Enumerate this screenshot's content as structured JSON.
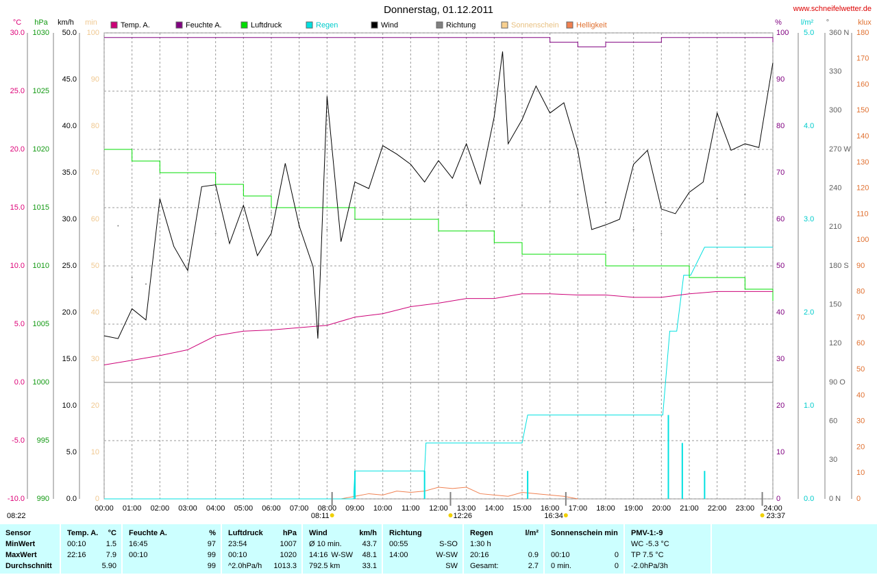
{
  "chart_data": {
    "type": "line",
    "title": "Donnerstag, 01.12.2011",
    "source": "www.schneifelwetter.de",
    "moon_label": "08:22",
    "grid": true,
    "xlim": [
      0,
      24
    ],
    "xticks": [
      {
        "value": 0,
        "label": "00:00"
      },
      {
        "value": 1,
        "label": "01:00"
      },
      {
        "value": 2,
        "label": "02:00"
      },
      {
        "value": 3,
        "label": "03:00"
      },
      {
        "value": 4,
        "label": "04:00"
      },
      {
        "value": 5,
        "label": "05:00"
      },
      {
        "value": 6,
        "label": "06:00"
      },
      {
        "value": 7,
        "label": "07:00"
      },
      {
        "value": 8,
        "label": "08:00"
      },
      {
        "value": 9,
        "label": "09:00"
      },
      {
        "value": 10,
        "label": "10:00"
      },
      {
        "value": 11,
        "label": "11:00"
      },
      {
        "value": 12,
        "label": "12:00"
      },
      {
        "value": 13,
        "label": "13:00"
      },
      {
        "value": 14,
        "label": "14:00"
      },
      {
        "value": 15,
        "label": "15:00"
      },
      {
        "value": 16,
        "label": "16:00"
      },
      {
        "value": 17,
        "label": "17:00"
      },
      {
        "value": 18,
        "label": "18:00"
      },
      {
        "value": 19,
        "label": "19:00"
      },
      {
        "value": 20,
        "label": "20:00"
      },
      {
        "value": 21,
        "label": "21:00"
      },
      {
        "value": 22,
        "label": "22:00"
      },
      {
        "value": 23,
        "label": "23:00"
      },
      {
        "value": 24,
        "label": "24:00"
      }
    ],
    "y_axes": [
      {
        "unit": "°C",
        "color": "#dd0077",
        "ylim": [
          -10,
          30
        ],
        "yticks": [
          {
            "value": -10,
            "label": "-10.0"
          },
          {
            "value": -5,
            "label": "-5.0"
          },
          {
            "value": 0,
            "label": "0.0"
          },
          {
            "value": 5,
            "label": "5.0"
          },
          {
            "value": 10,
            "label": "10.0"
          },
          {
            "value": 15,
            "label": "15.0"
          },
          {
            "value": 20,
            "label": "20.0"
          },
          {
            "value": 25,
            "label": "25.0"
          },
          {
            "value": 30,
            "label": "30.0"
          }
        ]
      },
      {
        "unit": "hPa",
        "color": "#119911",
        "ylim": [
          990,
          1030
        ],
        "yticks": [
          990,
          995,
          1000,
          1005,
          1010,
          1015,
          1020,
          1025,
          1030
        ]
      },
      {
        "unit": "km/h",
        "color": "#000000",
        "ylim": [
          0,
          50
        ],
        "yticks": [
          {
            "value": 0,
            "label": "0.0"
          },
          {
            "value": 5,
            "label": "5.0"
          },
          {
            "value": 10,
            "label": "10.0"
          },
          {
            "value": 15,
            "label": "15.0"
          },
          {
            "value": 20,
            "label": "20.0"
          },
          {
            "value": 25,
            "label": "25.0"
          },
          {
            "value": 30,
            "label": "30.0"
          },
          {
            "value": 35,
            "label": "35.0"
          },
          {
            "value": 40,
            "label": "40.0"
          },
          {
            "value": 45,
            "label": "45.0"
          },
          {
            "value": 50,
            "label": "50.0"
          }
        ]
      },
      {
        "unit": "min",
        "color": "#f0c890",
        "ylim": [
          0,
          100
        ],
        "yticks": [
          0,
          10,
          20,
          30,
          40,
          50,
          60,
          70,
          80,
          90,
          100
        ]
      },
      {
        "unit": "%",
        "color": "#800080",
        "ylim": [
          0,
          100
        ],
        "yticks": [
          0,
          10,
          20,
          30,
          40,
          50,
          60,
          70,
          80,
          90,
          100
        ]
      },
      {
        "unit": "l/m²",
        "color": "#00cccc",
        "ylim": [
          0,
          5
        ],
        "yticks": [
          {
            "value": 0,
            "label": "0.0"
          },
          {
            "value": 1,
            "label": "1.0"
          },
          {
            "value": 2,
            "label": "2.0"
          },
          {
            "value": 3,
            "label": "3.0"
          },
          {
            "value": 4,
            "label": "4.0"
          },
          {
            "value": 5,
            "label": "5.0"
          }
        ]
      },
      {
        "unit": "°",
        "color": "#606060",
        "ylim": [
          0,
          360
        ],
        "yticks": [
          {
            "value": 0,
            "label": "0 N"
          },
          30,
          60,
          {
            "value": 90,
            "label": "90 O"
          },
          120,
          150,
          {
            "value": 180,
            "label": "180 S"
          },
          210,
          240,
          {
            "value": 270,
            "label": "270 W"
          },
          300,
          330,
          {
            "value": 360,
            "label": "360 N"
          }
        ]
      },
      {
        "unit": "klux",
        "color": "#e07030",
        "ylim": [
          0,
          180
        ],
        "yticks": [
          0,
          10,
          20,
          30,
          40,
          50,
          60,
          70,
          80,
          90,
          100,
          110,
          120,
          130,
          140,
          150,
          160,
          170,
          180
        ]
      }
    ],
    "series": [
      {
        "name": "Temp. A.",
        "color": "#cc0077",
        "axis": 0,
        "style": "line",
        "x": [
          0,
          1,
          2,
          3,
          4,
          5,
          6,
          7,
          8,
          9,
          10,
          11,
          12,
          13,
          14,
          15,
          16,
          17,
          18,
          19,
          20,
          21,
          22,
          23,
          24
        ],
        "values": [
          1.5,
          1.9,
          2.3,
          2.8,
          4.0,
          4.4,
          4.5,
          4.7,
          4.9,
          5.6,
          5.9,
          6.5,
          6.8,
          7.2,
          7.2,
          7.6,
          7.6,
          7.5,
          7.5,
          7.3,
          7.3,
          7.6,
          7.8,
          7.8,
          7.8
        ]
      },
      {
        "name": "Feuchte A.",
        "color": "#800080",
        "axis": 4,
        "style": "step",
        "x": [
          0,
          1,
          2,
          3,
          4,
          5,
          6,
          7,
          8,
          9,
          10,
          11,
          12,
          13,
          14,
          15,
          16,
          17,
          18,
          19,
          20,
          21,
          22,
          23,
          24
        ],
        "values": [
          99,
          99,
          99,
          99,
          99,
          99,
          99,
          99,
          99,
          99,
          99,
          99,
          99,
          99,
          99,
          99,
          98,
          97,
          98,
          98,
          99,
          99,
          99,
          99,
          98
        ]
      },
      {
        "name": "Luftdruck",
        "color": "#00dd00",
        "axis": 1,
        "style": "step",
        "x": [
          0,
          1,
          2,
          3,
          4,
          5,
          6,
          7,
          8,
          9,
          10,
          11,
          12,
          13,
          14,
          15,
          16,
          17,
          18,
          19,
          20,
          21,
          22,
          23,
          24
        ],
        "values": [
          1020,
          1019,
          1018,
          1018,
          1017,
          1016,
          1015,
          1015,
          1015,
          1014,
          1014,
          1014,
          1013,
          1013,
          1012,
          1011,
          1011,
          1011,
          1010,
          1010,
          1010,
          1009,
          1009,
          1008,
          1007
        ]
      },
      {
        "name": "Regen",
        "color": "#00e0e0",
        "axis": 5,
        "style": "line",
        "x": [
          0,
          8.95,
          9.0,
          11.5,
          11.55,
          15.0,
          15.2,
          20.05,
          20.3,
          20.55,
          20.8,
          21.05,
          21.55,
          24
        ],
        "values": [
          0,
          0,
          0.3,
          0.3,
          0.6,
          0.6,
          0.9,
          0.9,
          1.8,
          1.8,
          2.4,
          2.4,
          2.7,
          2.7
        ],
        "bars_x": [
          9.0,
          11.5,
          15.2,
          20.25,
          20.75,
          21.55
        ],
        "bars_values": [
          0.3,
          0.3,
          0.3,
          0.9,
          0.6,
          0.3
        ]
      },
      {
        "name": "Wind",
        "color": "#000000",
        "axis": 2,
        "style": "line",
        "x": [
          0,
          0.5,
          1,
          1.5,
          2,
          2.5,
          3,
          3.5,
          4,
          4.5,
          5,
          5.5,
          6,
          6.5,
          7,
          7.5,
          7.67,
          8,
          8.5,
          9,
          9.5,
          10,
          10.5,
          11,
          11.5,
          12,
          12.5,
          13,
          13.5,
          14,
          14.3,
          14.5,
          15,
          15.5,
          16,
          16.5,
          17,
          17.5,
          18,
          18.5,
          19,
          19.5,
          20,
          20.5,
          21,
          21.5,
          22,
          22.5,
          23,
          23.5,
          24
        ],
        "values": [
          17.5,
          17.2,
          20.4,
          19.2,
          32.2,
          27.1,
          24.5,
          33.5,
          33.7,
          27.4,
          31.5,
          26.1,
          28.5,
          36.0,
          29.3,
          24.9,
          17.2,
          43.2,
          27.6,
          34.0,
          33.3,
          37.9,
          37.0,
          35.9,
          34.0,
          36.3,
          34.4,
          38.1,
          33.8,
          41.0,
          48.0,
          38.1,
          40.7,
          44.3,
          41.4,
          42.5,
          37.4,
          28.9,
          29.4,
          30.0,
          35.9,
          37.4,
          31.1,
          30.6,
          32.9,
          34.0,
          41.4,
          37.4,
          38.1,
          37.7,
          46.8
        ]
      },
      {
        "name": "Richtung",
        "color": "#808080",
        "axis": 6,
        "style": "dots",
        "x": [
          0.5,
          1,
          1.5,
          2,
          3,
          4,
          5,
          6,
          7,
          8,
          9,
          10,
          11,
          12,
          13,
          14,
          15,
          16,
          17,
          18,
          19,
          20,
          21,
          22,
          23
        ],
        "values": [
          211,
          171,
          166,
          184,
          200,
          205,
          208,
          221,
          211,
          208,
          216,
          221,
          224,
          221,
          227,
          232,
          227,
          230,
          235,
          229,
          208,
          205,
          232,
          232,
          235
        ]
      },
      {
        "name": "Sonnenschein",
        "color": "#f8d090",
        "axis": 3,
        "style": "line",
        "x": [],
        "values": []
      },
      {
        "name": "Helligkeit",
        "color": "#f08050",
        "axis": 7,
        "style": "line",
        "x": [
          8.5,
          9,
          9.5,
          10,
          10.5,
          11,
          11.5,
          12,
          12.5,
          13,
          13.5,
          14,
          14.5,
          15,
          15.5,
          16,
          16.5,
          17
        ],
        "values": [
          0,
          1,
          2,
          1.5,
          3,
          2.5,
          3,
          4.5,
          4,
          4.5,
          2,
          1.5,
          1,
          2.5,
          2,
          1.5,
          1,
          0
        ]
      }
    ],
    "annotations": [
      {
        "x": 8.18,
        "label": "08:11"
      },
      {
        "x": 12.43,
        "label": "12:26"
      },
      {
        "x": 16.57,
        "label": "16:34"
      },
      {
        "x": 23.62,
        "label": "23:37"
      }
    ]
  },
  "table": {
    "columns": [
      {
        "l": "Sensor"
      },
      {
        "l": "Temp. A.",
        "r": "°C"
      },
      {
        "l": "Feuchte A.",
        "r": "%"
      },
      {
        "l": "Luftdruck",
        "r": "hPa"
      },
      {
        "l": "Wind",
        "r": "km/h"
      },
      {
        "l": "Richtung"
      },
      {
        "l": "Regen",
        "r": "l/m²"
      },
      {
        "l": "Sonnenschein min"
      },
      {
        "l": "PMV-1:-9"
      }
    ],
    "rows": [
      [
        {
          "l": "MinWert"
        },
        {
          "l": "00:10",
          "r": "1.5"
        },
        {
          "l": "16:45",
          "r": "97"
        },
        {
          "l": "23:54",
          "r": "1007"
        },
        {
          "l": "Ø 10 min.",
          "r": "43.7"
        },
        {
          "l": "00:55",
          "r": "S-SO"
        },
        {
          "l": "1:30 h"
        },
        {},
        {
          "l": "WC -5.3 °C"
        }
      ],
      [
        {
          "l": "MaxWert"
        },
        {
          "l": "22:16",
          "r": "7.9"
        },
        {
          "l": "00:10",
          "r": "99"
        },
        {
          "l": "00:10",
          "r": "1020"
        },
        {
          "l": "14:16",
          "m": "W-SW",
          "r": "48.1"
        },
        {
          "l": "14:00",
          "r": "W-SW"
        },
        {
          "l": "20:16",
          "r": "0.9"
        },
        {
          "l": "00:10",
          "r": "0"
        },
        {
          "l": "TP 7.5 °C"
        }
      ],
      [
        {
          "l": "Durchschnitt"
        },
        {
          "r": "5.90"
        },
        {
          "r": "99"
        },
        {
          "l": "^2.0hPa/h",
          "r": "1013.3"
        },
        {
          "l": "792.5 km",
          "r": "33.1"
        },
        {
          "r": "SW"
        },
        {
          "l": "Gesamt:",
          "r": "2.7"
        },
        {
          "l": "0 min.",
          "r": "0"
        },
        {
          "l": "-2.0hPa/3h"
        }
      ]
    ]
  }
}
